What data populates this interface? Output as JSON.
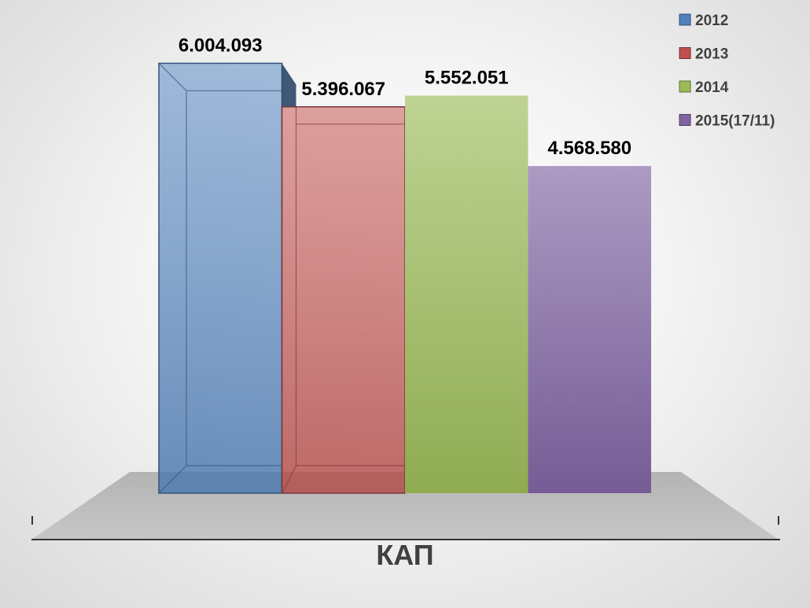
{
  "chart_data": {
    "type": "bar",
    "categories": [
      "КАП"
    ],
    "series": [
      {
        "name": "2012",
        "values": [
          6004093
        ],
        "label": "6.004.093",
        "color": "#4f81bd"
      },
      {
        "name": "2013",
        "values": [
          5396067
        ],
        "label": "5.396.067",
        "color": "#c0504d"
      },
      {
        "name": "2014",
        "values": [
          5552051
        ],
        "label": "5.552.051",
        "color": "#9bbb59"
      },
      {
        "name": "2015(17/11)",
        "values": [
          4568580
        ],
        "label": "4.568.580",
        "color": "#8064a2"
      }
    ],
    "ylim": [
      0,
      6800000
    ],
    "grid": false,
    "legend": "top-right"
  }
}
